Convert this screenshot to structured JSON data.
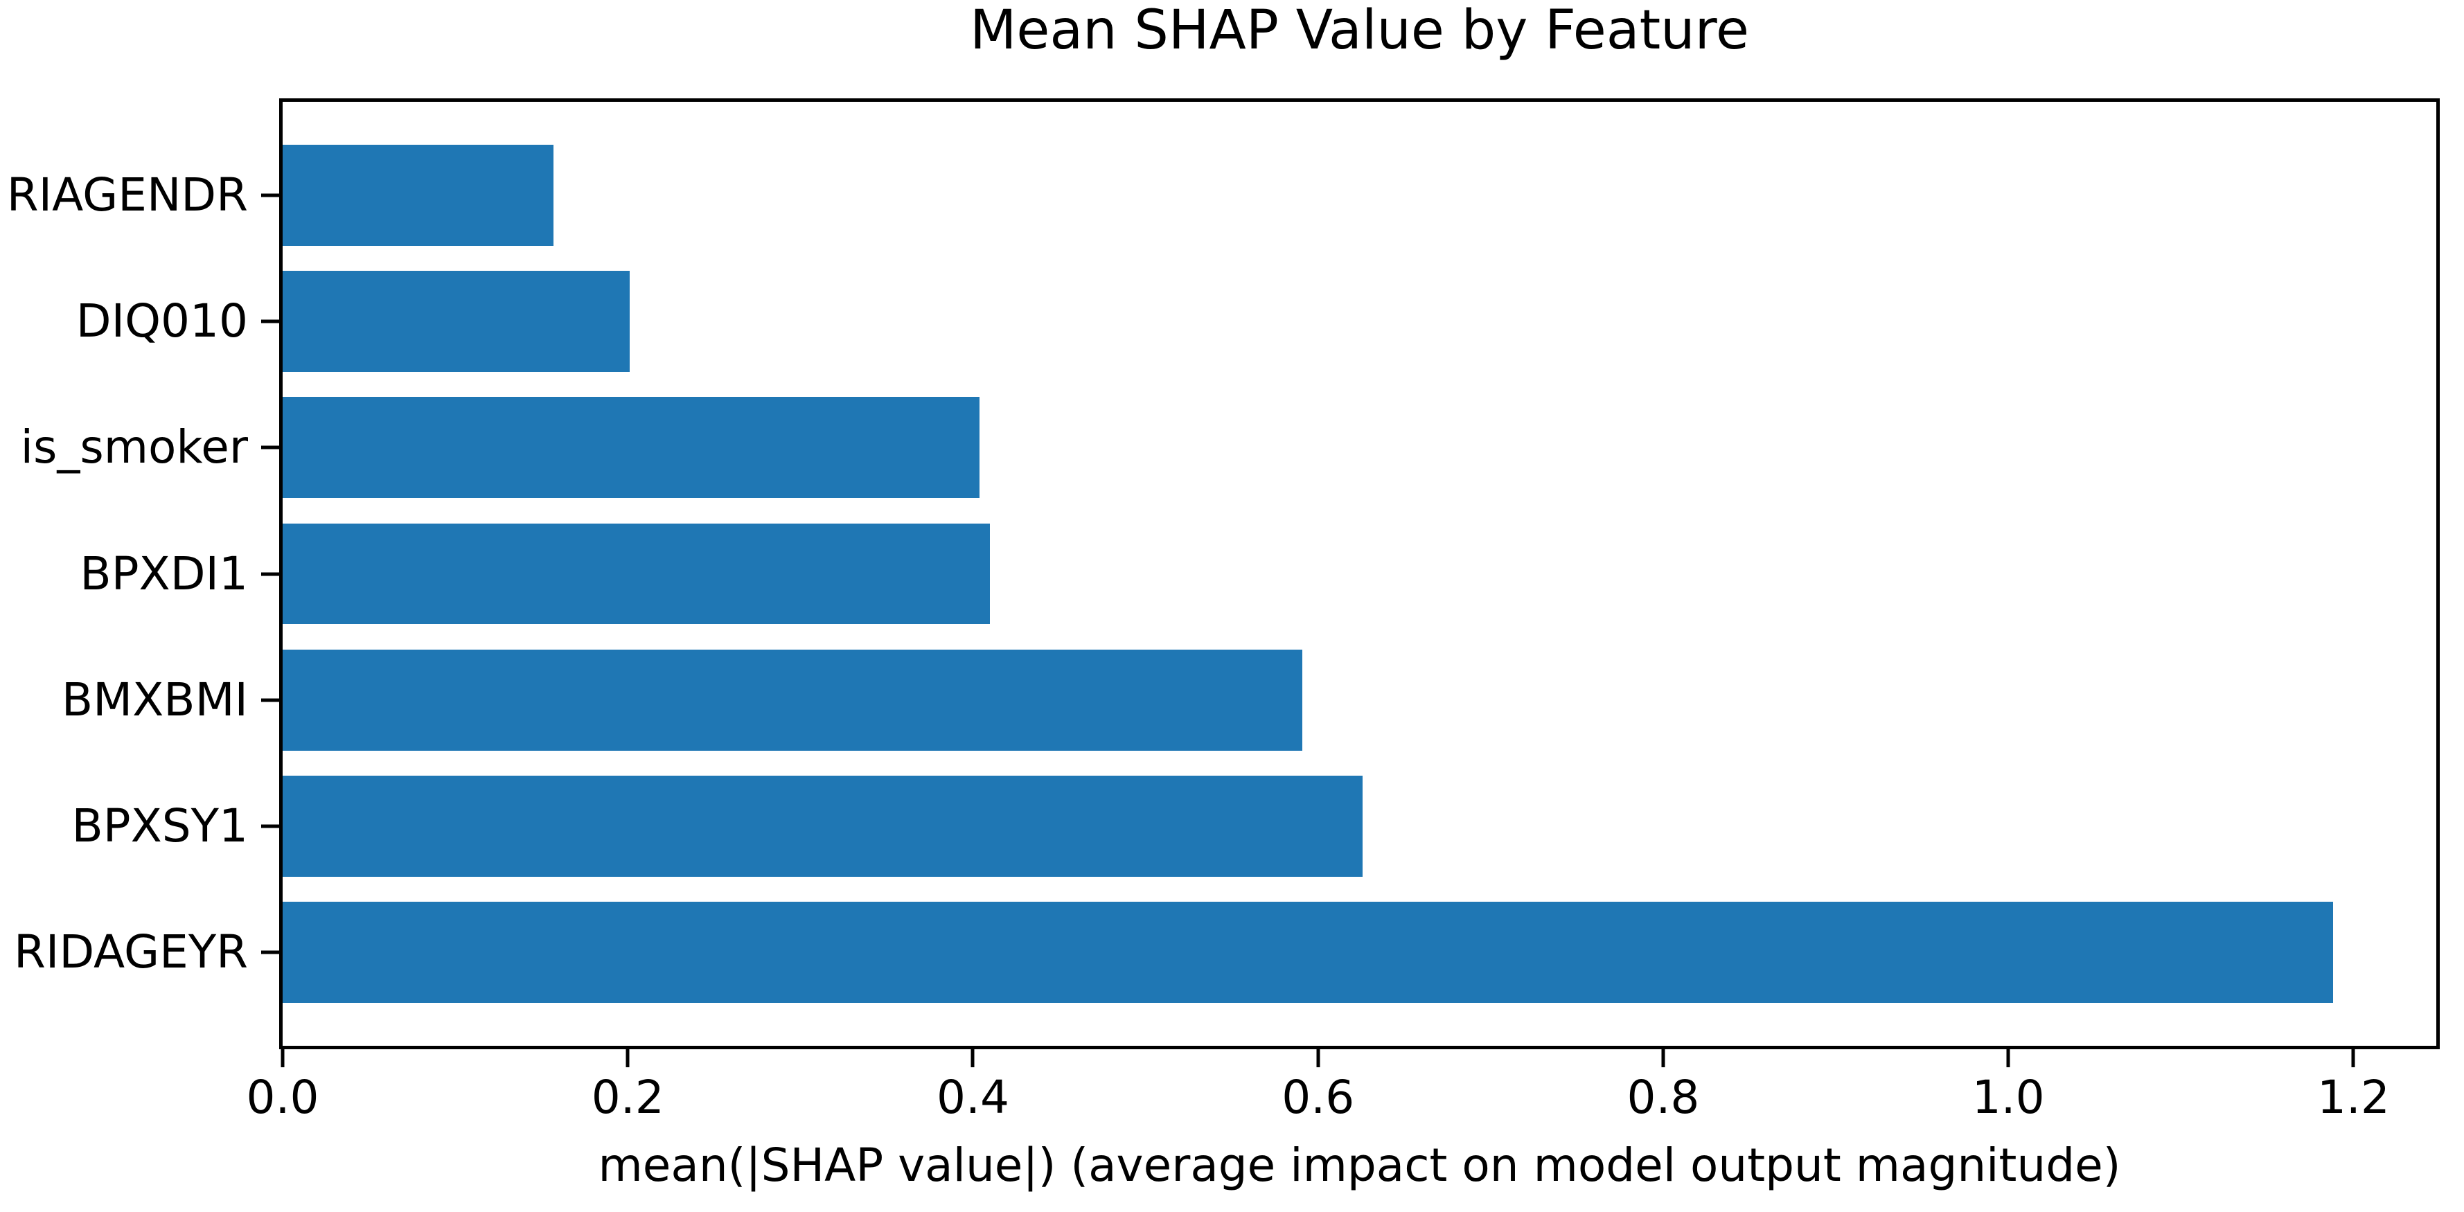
{
  "chart_data": {
    "type": "bar",
    "orientation": "horizontal",
    "title": "Mean SHAP Value by Feature",
    "xlabel": "mean(|SHAP value|) (average impact on model output magnitude)",
    "categories": [
      "RIAGENDR",
      "DIQ010",
      "is_smoker",
      "BPXDI1",
      "BMXBMI",
      "BPXSY1",
      "RIDAGEYR"
    ],
    "categories_order": "top-to-bottom",
    "values": [
      0.157,
      0.201,
      0.404,
      0.41,
      0.591,
      0.626,
      1.188
    ],
    "xlim": [
      0,
      1.248
    ],
    "xticks": [
      0.0,
      0.2,
      0.4,
      0.6,
      0.8,
      1.0,
      1.2
    ],
    "xtick_labels": [
      "0.0",
      "0.2",
      "0.4",
      "0.6",
      "0.8",
      "1.0",
      "1.2"
    ],
    "bar_color": "#1f77b4",
    "axis_color": "#000000",
    "background_color": "#ffffff",
    "grid": false,
    "legend_position": "none"
  }
}
